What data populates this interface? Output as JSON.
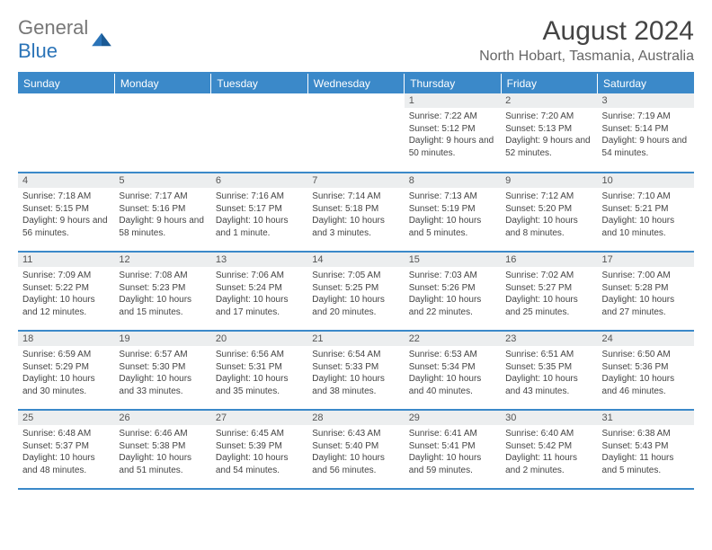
{
  "logo": {
    "general": "General",
    "blue": "Blue"
  },
  "header": {
    "month": "August 2024",
    "location": "North Hobart, Tasmania, Australia"
  },
  "colors": {
    "accent": "#3b89c9",
    "daynum_bg": "#eceeef",
    "text": "#444444",
    "text_light": "#666666"
  },
  "day_names": [
    "Sunday",
    "Monday",
    "Tuesday",
    "Wednesday",
    "Thursday",
    "Friday",
    "Saturday"
  ],
  "first_weekday": 4,
  "num_days": 31,
  "days": {
    "1": {
      "sr": "7:22 AM",
      "ss": "5:12 PM",
      "dl": "9 hours and 50 minutes."
    },
    "2": {
      "sr": "7:20 AM",
      "ss": "5:13 PM",
      "dl": "9 hours and 52 minutes."
    },
    "3": {
      "sr": "7:19 AM",
      "ss": "5:14 PM",
      "dl": "9 hours and 54 minutes."
    },
    "4": {
      "sr": "7:18 AM",
      "ss": "5:15 PM",
      "dl": "9 hours and 56 minutes."
    },
    "5": {
      "sr": "7:17 AM",
      "ss": "5:16 PM",
      "dl": "9 hours and 58 minutes."
    },
    "6": {
      "sr": "7:16 AM",
      "ss": "5:17 PM",
      "dl": "10 hours and 1 minute."
    },
    "7": {
      "sr": "7:14 AM",
      "ss": "5:18 PM",
      "dl": "10 hours and 3 minutes."
    },
    "8": {
      "sr": "7:13 AM",
      "ss": "5:19 PM",
      "dl": "10 hours and 5 minutes."
    },
    "9": {
      "sr": "7:12 AM",
      "ss": "5:20 PM",
      "dl": "10 hours and 8 minutes."
    },
    "10": {
      "sr": "7:10 AM",
      "ss": "5:21 PM",
      "dl": "10 hours and 10 minutes."
    },
    "11": {
      "sr": "7:09 AM",
      "ss": "5:22 PM",
      "dl": "10 hours and 12 minutes."
    },
    "12": {
      "sr": "7:08 AM",
      "ss": "5:23 PM",
      "dl": "10 hours and 15 minutes."
    },
    "13": {
      "sr": "7:06 AM",
      "ss": "5:24 PM",
      "dl": "10 hours and 17 minutes."
    },
    "14": {
      "sr": "7:05 AM",
      "ss": "5:25 PM",
      "dl": "10 hours and 20 minutes."
    },
    "15": {
      "sr": "7:03 AM",
      "ss": "5:26 PM",
      "dl": "10 hours and 22 minutes."
    },
    "16": {
      "sr": "7:02 AM",
      "ss": "5:27 PM",
      "dl": "10 hours and 25 minutes."
    },
    "17": {
      "sr": "7:00 AM",
      "ss": "5:28 PM",
      "dl": "10 hours and 27 minutes."
    },
    "18": {
      "sr": "6:59 AM",
      "ss": "5:29 PM",
      "dl": "10 hours and 30 minutes."
    },
    "19": {
      "sr": "6:57 AM",
      "ss": "5:30 PM",
      "dl": "10 hours and 33 minutes."
    },
    "20": {
      "sr": "6:56 AM",
      "ss": "5:31 PM",
      "dl": "10 hours and 35 minutes."
    },
    "21": {
      "sr": "6:54 AM",
      "ss": "5:33 PM",
      "dl": "10 hours and 38 minutes."
    },
    "22": {
      "sr": "6:53 AM",
      "ss": "5:34 PM",
      "dl": "10 hours and 40 minutes."
    },
    "23": {
      "sr": "6:51 AM",
      "ss": "5:35 PM",
      "dl": "10 hours and 43 minutes."
    },
    "24": {
      "sr": "6:50 AM",
      "ss": "5:36 PM",
      "dl": "10 hours and 46 minutes."
    },
    "25": {
      "sr": "6:48 AM",
      "ss": "5:37 PM",
      "dl": "10 hours and 48 minutes."
    },
    "26": {
      "sr": "6:46 AM",
      "ss": "5:38 PM",
      "dl": "10 hours and 51 minutes."
    },
    "27": {
      "sr": "6:45 AM",
      "ss": "5:39 PM",
      "dl": "10 hours and 54 minutes."
    },
    "28": {
      "sr": "6:43 AM",
      "ss": "5:40 PM",
      "dl": "10 hours and 56 minutes."
    },
    "29": {
      "sr": "6:41 AM",
      "ss": "5:41 PM",
      "dl": "10 hours and 59 minutes."
    },
    "30": {
      "sr": "6:40 AM",
      "ss": "5:42 PM",
      "dl": "11 hours and 2 minutes."
    },
    "31": {
      "sr": "6:38 AM",
      "ss": "5:43 PM",
      "dl": "11 hours and 5 minutes."
    }
  },
  "labels": {
    "sunrise": "Sunrise:",
    "sunset": "Sunset:",
    "daylight": "Daylight:"
  }
}
